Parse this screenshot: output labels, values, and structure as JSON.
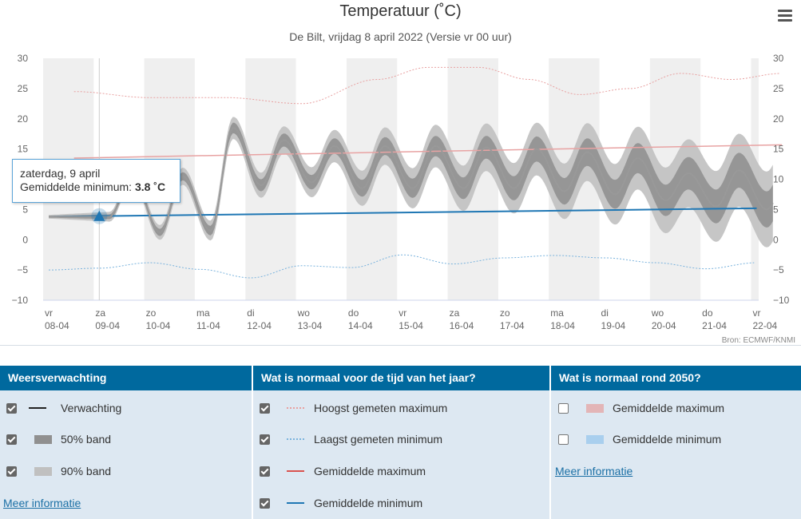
{
  "header": {
    "title": "Temperatuur (˚C)",
    "subtitle": "De Bilt, vrijdag 8 april 2022 (Versie vr 00 uur)",
    "menu_icon": "hamburger-menu-icon"
  },
  "chart_data": {
    "type": "line",
    "title": "Temperatuur (˚C)",
    "subtitle": "De Bilt, vrijdag 8 april 2022 (Versie vr 00 uur)",
    "ylim": [
      -10,
      30
    ],
    "y_ticks": [
      -10,
      -5,
      0,
      5,
      10,
      15,
      20,
      25,
      30
    ],
    "y_tick_labels": [
      "−10",
      "−5",
      "0",
      "5",
      "10",
      "15",
      "20",
      "25",
      "30"
    ],
    "x_ticks": [
      {
        "day": "vr",
        "date": "08-04"
      },
      {
        "day": "za",
        "date": "09-04"
      },
      {
        "day": "zo",
        "date": "10-04"
      },
      {
        "day": "ma",
        "date": "11-04"
      },
      {
        "day": "di",
        "date": "12-04"
      },
      {
        "day": "wo",
        "date": "13-04"
      },
      {
        "day": "do",
        "date": "14-04"
      },
      {
        "day": "vr",
        "date": "15-04"
      },
      {
        "day": "za",
        "date": "16-04"
      },
      {
        "day": "zo",
        "date": "17-04"
      },
      {
        "day": "ma",
        "date": "18-04"
      },
      {
        "day": "di",
        "date": "19-04"
      },
      {
        "day": "wo",
        "date": "20-04"
      },
      {
        "day": "do",
        "date": "21-04"
      },
      {
        "day": "vr",
        "date": "22-04"
      }
    ],
    "grid": "alternating day shading",
    "credit": "Bron: ECMWF/KNMI",
    "series": [
      {
        "name": "Verwachting",
        "color": "#999999",
        "minima": [
          3.8,
          3.8,
          1.2,
          1.5,
          9.0,
          9.5,
          8.5,
          8.5,
          8.5,
          8.5,
          8.0,
          7.5,
          6.5,
          5.5,
          5.0
        ],
        "maxima": [
          null,
          10.5,
          10.5,
          18.5,
          16.5,
          15.5,
          15.5,
          15.5,
          15.3,
          15.0,
          14.5,
          13.5,
          11.0,
          11.5,
          11.5
        ]
      },
      {
        "name": "Hoogst gemeten maximum",
        "color": "#e8a0a0",
        "style": "dotted",
        "x": [
          0.5,
          2,
          3.5,
          5,
          6.5,
          7.5,
          8.5,
          9.5,
          10.5,
          11.5,
          12.5,
          13.5,
          14.5
        ],
        "values": [
          24.5,
          23.5,
          23.5,
          22.5,
          26.5,
          28.5,
          28.5,
          26.5,
          24.0,
          25.0,
          27.5,
          26.5,
          27.5
        ]
      },
      {
        "name": "Laagst gemeten minimum",
        "color": "#7ab3dd",
        "style": "dotted",
        "x": [
          0,
          1,
          2,
          3,
          4,
          5,
          6,
          7,
          8,
          9,
          10,
          11,
          12,
          13,
          14
        ],
        "values": [
          -5.0,
          -4.7,
          -3.8,
          -4.9,
          -6.3,
          -4.3,
          -4.6,
          -2.5,
          -4.0,
          -3.0,
          -2.6,
          -3.0,
          -3.8,
          -4.8,
          -3.8
        ]
      },
      {
        "name": "Gemiddelde maximum",
        "color": "#e8a3a3",
        "start": 13.5,
        "end": 15.7
      },
      {
        "name": "Gemiddelde minimum",
        "color": "#1f77b4",
        "start": 3.8,
        "end": 5.2
      }
    ]
  },
  "tooltip": {
    "date": "zaterdag, 9 april",
    "label": "Gemiddelde minimum:",
    "value": "3.8 ˚C"
  },
  "legend": {
    "col1": {
      "header": "Weersverwachting",
      "items": [
        {
          "label": "Verwachting",
          "checked": true
        },
        {
          "label": "50% band",
          "checked": true
        },
        {
          "label": "90% band",
          "checked": true
        }
      ],
      "more": "Meer informatie"
    },
    "col2": {
      "header": "Wat is normaal voor de tijd van het jaar?",
      "items": [
        {
          "label": "Hoogst gemeten maximum",
          "checked": true
        },
        {
          "label": "Laagst gemeten minimum",
          "checked": true
        },
        {
          "label": "Gemiddelde maximum",
          "checked": true
        },
        {
          "label": "Gemiddelde minimum",
          "checked": true
        }
      ]
    },
    "col3": {
      "header": "Wat is normaal rond 2050?",
      "items": [
        {
          "label": "Gemiddelde maximum",
          "checked": false
        },
        {
          "label": "Gemiddelde minimum",
          "checked": false
        }
      ],
      "more": "Meer informatie"
    }
  },
  "colors": {
    "header_bg": "#00699e",
    "legend_bg": "#dde8f2",
    "forecast_line": "#999999",
    "band_50": "#909090",
    "band_90": "#c0c0c0",
    "avg_min": "#1f77b4",
    "avg_max": "#e8a3a3",
    "rec_max": "#e8a0a0",
    "rec_min": "#7ab3dd",
    "future_max_swatch": "#e3b5b7",
    "future_min_swatch": "#a9cfee"
  }
}
